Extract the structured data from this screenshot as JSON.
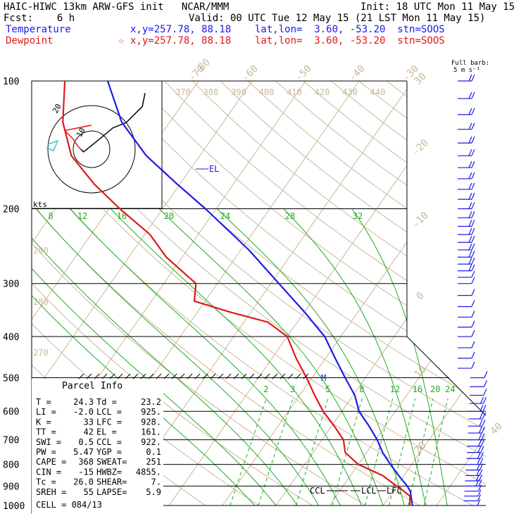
{
  "header": {
    "title": "HAIC-HIWC 13km ARW-GFS init   NCAR/MMM",
    "init": "Init: 18 UTC Mon 11 May 15",
    "fcst": "Fcst:    6 h",
    "valid": "Valid: 00 UTC Tue 12 May 15 (21 LST Mon 11 May 15)",
    "temp_label": "Temperature",
    "temp_loc": "x,y=257.78, 88.18    lat,lon=  3.60, -53.20  stn=SOOS",
    "dew_label": "Dewpoint",
    "dew_loc": "x,y=257.78, 88.18    lat,lon=  3.60, -53.20  stn=SOOS",
    "dew_marker": "☆",
    "barb_title": "Full barb:",
    "barb_unit": "5 m s⁻¹"
  },
  "colors": {
    "temperature": "#1a1aee",
    "dewpoint": "#e01818",
    "isotherm": "#c8b89a",
    "dry_adiabat": "#c8b89a",
    "moist_adiabat": "#22aa22",
    "mixing_ratio": "#22aa22",
    "isobar": "#000000",
    "wind_barb": "#1a1aee",
    "hodo_lower": "#e01818",
    "hodo_upper": "#000000",
    "hodo_storm": "#33cccc"
  },
  "chart_data": {
    "type": "line",
    "chart_kind": "skew-T log-P sounding",
    "y_scale": "log pressure",
    "ylim": [
      1000,
      100
    ],
    "isobars": [
      100,
      200,
      300,
      400,
      500,
      600,
      700,
      800,
      900,
      1000
    ],
    "isotherm_labels": [
      -80,
      -70,
      -60,
      -50,
      -40,
      -30,
      -20,
      -10,
      0,
      10,
      20,
      30,
      40
    ],
    "theta_labels_top": [
      370,
      380,
      390,
      400,
      410,
      420,
      430,
      440
    ],
    "theta_labels_left": [
      290,
      280,
      270
    ],
    "theta_e_labels": [
      8,
      12,
      16,
      20,
      24,
      28,
      32
    ],
    "mixing_ratio_labels": [
      2,
      3,
      5,
      8,
      12,
      16,
      20,
      24
    ],
    "series": [
      {
        "name": "Temperature",
        "p": [
          1000,
          950,
          925,
          900,
          850,
          800,
          750,
          700,
          650,
          600,
          550,
          500,
          450,
          400,
          350,
          300,
          250,
          200,
          175,
          150,
          125,
          100
        ],
        "t": [
          25.5,
          24.0,
          23.2,
          22.0,
          19.0,
          16.0,
          13.0,
          10.3,
          7.0,
          3.2,
          0.3,
          -3.8,
          -8.2,
          -13.0,
          -20.0,
          -28.5,
          -38.5,
          -52.0,
          -60.5,
          -70.0,
          -79.0,
          -87.0
        ]
      },
      {
        "name": "Dewpoint",
        "p": [
          1000,
          950,
          925,
          900,
          850,
          800,
          750,
          700,
          650,
          600,
          550,
          500,
          450,
          400,
          370,
          350,
          330,
          300,
          260,
          230,
          200,
          175,
          150,
          125,
          100
        ],
        "t": [
          25.0,
          23.8,
          22.0,
          20.0,
          16.0,
          10.0,
          6.0,
          4.0,
          0.5,
          -3.5,
          -7.2,
          -11.0,
          -15.5,
          -20.0,
          -25.5,
          -34.0,
          -42.0,
          -44.0,
          -53.0,
          -59.0,
          -68.0,
          -76.0,
          -84.0,
          -90.0,
          -95.0
        ]
      },
      {
        "name": "Parcel",
        "p": [
          500,
          510
        ],
        "t": [
          -4.0,
          -3.5
        ]
      }
    ],
    "annotations": {
      "el": "EL",
      "el_p": 161,
      "m": "M",
      "m_p": 495,
      "ccl": "CCL",
      "lcl": "LCL",
      "lfc": "LFC",
      "levels_p": 925
    },
    "wind_barbs": [
      {
        "p": 100,
        "speed": 10,
        "dir": 90
      },
      {
        "p": 110,
        "speed": 10,
        "dir": 90
      },
      {
        "p": 120,
        "speed": 10,
        "dir": 90
      },
      {
        "p": 130,
        "speed": 10,
        "dir": 90
      },
      {
        "p": 140,
        "speed": 10,
        "dir": 90
      },
      {
        "p": 150,
        "speed": 10,
        "dir": 90
      },
      {
        "p": 160,
        "speed": 10,
        "dir": 90
      },
      {
        "p": 170,
        "speed": 10,
        "dir": 90
      },
      {
        "p": 180,
        "speed": 10,
        "dir": 90
      },
      {
        "p": 190,
        "speed": 10,
        "dir": 90
      },
      {
        "p": 200,
        "speed": 10,
        "dir": 90
      },
      {
        "p": 210,
        "speed": 10,
        "dir": 90
      },
      {
        "p": 220,
        "speed": 10,
        "dir": 90
      },
      {
        "p": 230,
        "speed": 10,
        "dir": 90
      },
      {
        "p": 240,
        "speed": 10,
        "dir": 90
      },
      {
        "p": 250,
        "speed": 10,
        "dir": 90
      },
      {
        "p": 260,
        "speed": 10,
        "dir": 90
      },
      {
        "p": 270,
        "speed": 10,
        "dir": 90
      },
      {
        "p": 280,
        "speed": 10,
        "dir": 90
      },
      {
        "p": 290,
        "speed": 5,
        "dir": 90
      },
      {
        "p": 300,
        "speed": 5,
        "dir": 60
      },
      {
        "p": 320,
        "speed": 5,
        "dir": 45
      },
      {
        "p": 340,
        "speed": 5,
        "dir": 45
      },
      {
        "p": 360,
        "speed": 5,
        "dir": 45
      },
      {
        "p": 380,
        "speed": 5,
        "dir": 45
      },
      {
        "p": 400,
        "speed": 5,
        "dir": 60
      },
      {
        "p": 425,
        "speed": 5,
        "dir": 60
      },
      {
        "p": 450,
        "speed": 5,
        "dir": 60
      },
      {
        "p": 475,
        "speed": 5,
        "dir": 60
      },
      {
        "p": 500,
        "speed": 5,
        "dir": 60
      },
      {
        "p": 525,
        "speed": 5,
        "dir": 60
      },
      {
        "p": 550,
        "speed": 5,
        "dir": 60
      },
      {
        "p": 575,
        "speed": 10,
        "dir": 60
      },
      {
        "p": 600,
        "speed": 10,
        "dir": 60
      },
      {
        "p": 625,
        "speed": 10,
        "dir": 60
      },
      {
        "p": 650,
        "speed": 10,
        "dir": 75
      },
      {
        "p": 675,
        "speed": 10,
        "dir": 75
      },
      {
        "p": 700,
        "speed": 10,
        "dir": 75
      },
      {
        "p": 725,
        "speed": 10,
        "dir": 75
      },
      {
        "p": 750,
        "speed": 10,
        "dir": 75
      },
      {
        "p": 775,
        "speed": 10,
        "dir": 75
      },
      {
        "p": 800,
        "speed": 10,
        "dir": 75
      },
      {
        "p": 825,
        "speed": 10,
        "dir": 75
      },
      {
        "p": 850,
        "speed": 10,
        "dir": 75
      },
      {
        "p": 875,
        "speed": 10,
        "dir": 75
      },
      {
        "p": 900,
        "speed": 10,
        "dir": 75
      },
      {
        "p": 925,
        "speed": 5,
        "dir": 60
      },
      {
        "p": 950,
        "speed": 5,
        "dir": 60
      },
      {
        "p": 975,
        "speed": 5,
        "dir": 60
      },
      {
        "p": 1000,
        "speed": 5,
        "dir": 60
      }
    ],
    "hodograph": {
      "ring_label": "kts",
      "ring_labels": [
        "8",
        "12",
        "16",
        "20",
        "24"
      ],
      "inner_labels": [
        "10",
        "20"
      ],
      "trace_lower": [
        [
          0,
          -18
        ],
        [
          -20,
          -14
        ],
        [
          -14,
          -8
        ],
        [
          -10,
          -2
        ],
        [
          -8,
          0
        ]
      ],
      "trace_upper": [
        [
          -8,
          0
        ],
        [
          -6,
          2
        ],
        [
          4,
          -6
        ],
        [
          16,
          -16
        ],
        [
          26,
          -20
        ],
        [
          38,
          -32
        ],
        [
          40,
          -42
        ]
      ]
    }
  },
  "parcel_info": {
    "title": "Parcel Info",
    "rows": [
      {
        "l1": "T  =",
        "v1": "24.3",
        "l2": "Td =",
        "v2": "23.2"
      },
      {
        "l1": "LI =",
        "v1": "-2.0",
        "l2": "LCL =",
        "v2": "925."
      },
      {
        "l1": "K  =",
        "v1": "33",
        "l2": "LFC =",
        "v2": "928."
      },
      {
        "l1": "TT =",
        "v1": "42",
        "l2": "EL  =",
        "v2": "161."
      },
      {
        "l1": "SWI =",
        "v1": "0.5",
        "l2": "CCL =",
        "v2": "922."
      },
      {
        "l1": "PW =",
        "v1": "5.47",
        "l2": "YGP =",
        "v2": "0.1"
      },
      {
        "l1": "CAPE =",
        "v1": "368",
        "l2": "SWEAT=",
        "v2": "251"
      },
      {
        "l1": "CIN =",
        "v1": "-15",
        "l2": "HWBZ=",
        "v2": "4855."
      },
      {
        "l1": "Tc =",
        "v1": "26.0",
        "l2": "SHEAR=",
        "v2": "7."
      },
      {
        "l1": "SREH =",
        "v1": "55",
        "l2": "LAPSE=",
        "v2": "5.9"
      }
    ],
    "cell": "CELL = 084/13"
  }
}
